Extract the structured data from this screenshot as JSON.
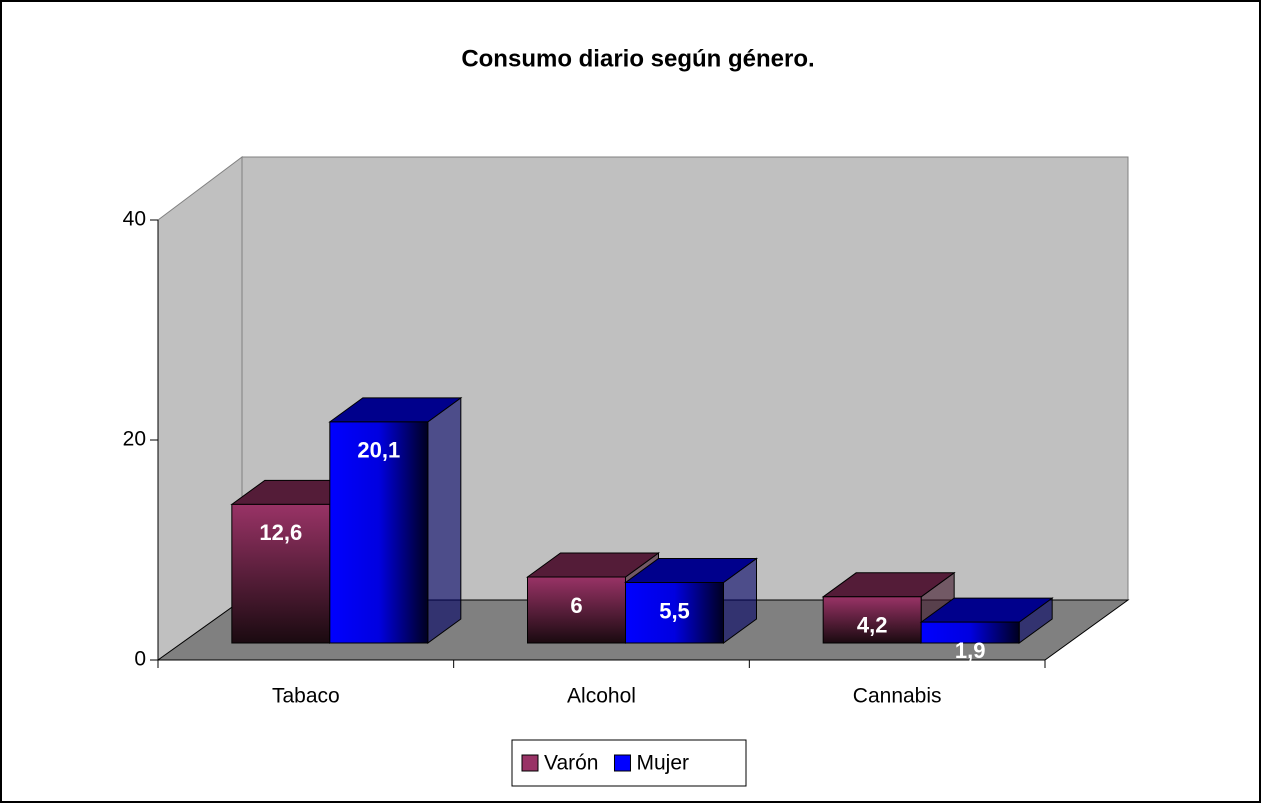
{
  "chart_data": {
    "type": "bar3d",
    "title": "Consumo diario según género.",
    "categories": [
      "Tabaco",
      "Alcohol",
      "Cannabis"
    ],
    "series": [
      {
        "name": "Varón",
        "color": "#993366",
        "values": [
          12.6,
          6,
          4.2
        ],
        "value_labels": [
          "12,6",
          "6",
          "4,2"
        ]
      },
      {
        "name": "Mujer",
        "color": "#0000ff",
        "values": [
          20.1,
          5.5,
          1.9
        ],
        "value_labels": [
          "20,1",
          "5,5",
          "1,9"
        ]
      }
    ],
    "ylim": [
      0,
      40
    ],
    "yticks": [
      0,
      20,
      40
    ],
    "grid": false,
    "legend": "bottom"
  }
}
